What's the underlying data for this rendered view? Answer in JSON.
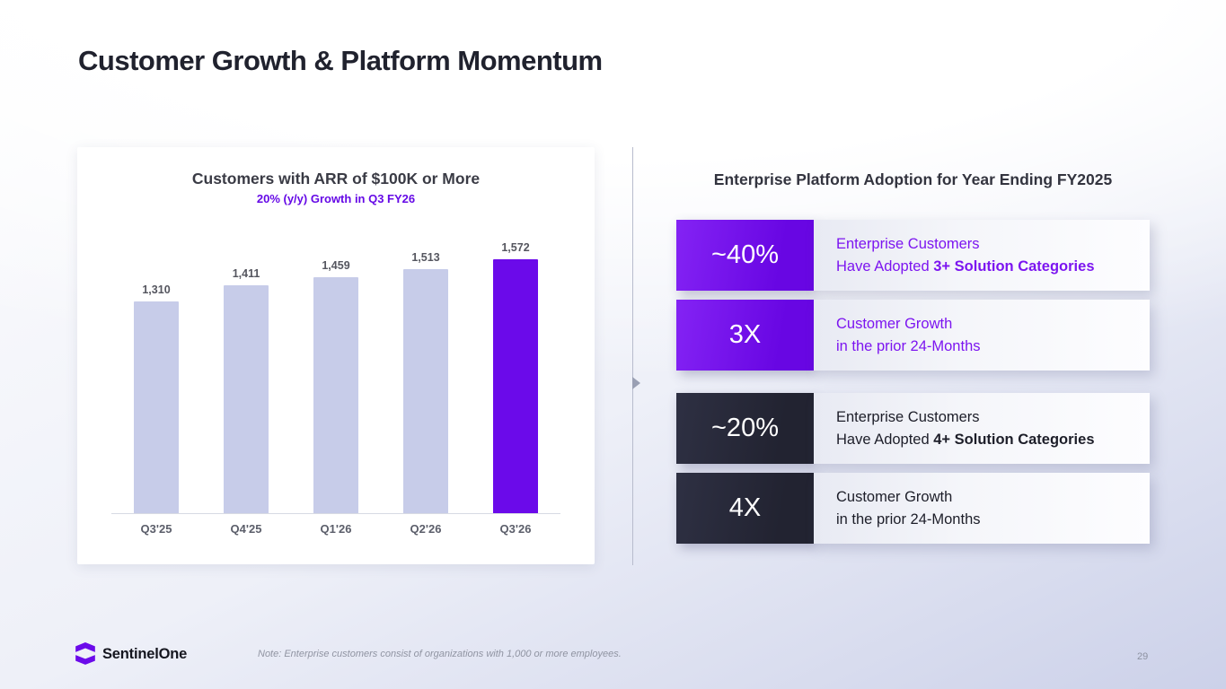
{
  "slide": {
    "title": "Customer Growth & Platform Momentum",
    "page_number": "29",
    "footer_note": "Note: Enterprise customers consist of organizations with 1,000 or more employees.",
    "brand_name": "SentinelOne"
  },
  "chart_data": {
    "type": "bar",
    "title": "Customers with ARR of $100K or More",
    "subtitle": "20% (y/y) Growth in Q3 FY26",
    "categories": [
      "Q3'25",
      "Q4'25",
      "Q1'26",
      "Q2'26",
      "Q3'26"
    ],
    "values": [
      1310,
      1411,
      1459,
      1513,
      1572
    ],
    "data_labels": [
      "1,310",
      "1,411",
      "1,459",
      "1,513",
      "1,572"
    ],
    "highlight_index": 4,
    "bar_color": "#c7cce9",
    "highlight_color": "#6b0aea",
    "ylim": [
      0,
      1650
    ],
    "xlabel": "",
    "ylabel": "",
    "grid": false,
    "legend": "none"
  },
  "right_panel": {
    "heading": "Enterprise Platform Adoption for Year Ending FY2025",
    "rows": [
      {
        "stat": "~40%",
        "line1": "Enterprise Customers",
        "line2": "Have Adopted ",
        "line2_bold": "3+ Solution Categories"
      },
      {
        "stat": "3X",
        "line1": "Customer Growth",
        "line2": "in the prior 24-Months",
        "line2_bold": ""
      },
      {
        "stat": "~20%",
        "line1": "Enterprise Customers",
        "line2": "Have Adopted ",
        "line2_bold": "4+ Solution Categories"
      },
      {
        "stat": "4X",
        "line1": "Customer Growth",
        "line2": "in the prior 24-Months",
        "line2_bold": ""
      }
    ]
  },
  "colors": {
    "accent_purple": "#6b0aea",
    "dark_navy": "#272839",
    "bar_light": "#c7cce9"
  }
}
